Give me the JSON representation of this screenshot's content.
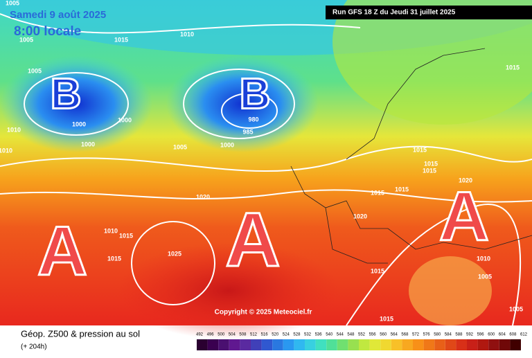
{
  "header": {
    "date": "Samedi 9 août 2025",
    "time": "8:00 locale",
    "run": "Run GFS 18 Z du Jeudi 31 juillet 2025"
  },
  "copyright": "Copyright © 2025 Meteociel.fr",
  "footer": {
    "title": "Géop. Z500 & pression au sol",
    "lead": "(+ 204h)"
  },
  "systems": [
    "B",
    "B",
    "A",
    "A",
    "A"
  ],
  "pressure_labels": [
    "1005",
    "1005",
    "1015",
    "1010",
    "1005",
    "1000",
    "1000",
    "980",
    "985",
    "1010",
    "1010",
    "1000",
    "1005",
    "1000",
    "1015",
    "1015",
    "1015",
    "1015",
    "1020",
    "1015",
    "1015",
    "1020",
    "1020",
    "1010",
    "1015",
    "1015",
    "1025",
    "1010",
    "1005",
    "1015",
    "1015",
    "1005"
  ],
  "legend": {
    "labels": [
      "492",
      "496",
      "500",
      "504",
      "508",
      "512",
      "516",
      "520",
      "524",
      "528",
      "532",
      "536",
      "540",
      "544",
      "548",
      "552",
      "556",
      "560",
      "564",
      "568",
      "572",
      "576",
      "580",
      "584",
      "588",
      "592",
      "596",
      "600",
      "604",
      "608",
      "612"
    ]
  }
}
